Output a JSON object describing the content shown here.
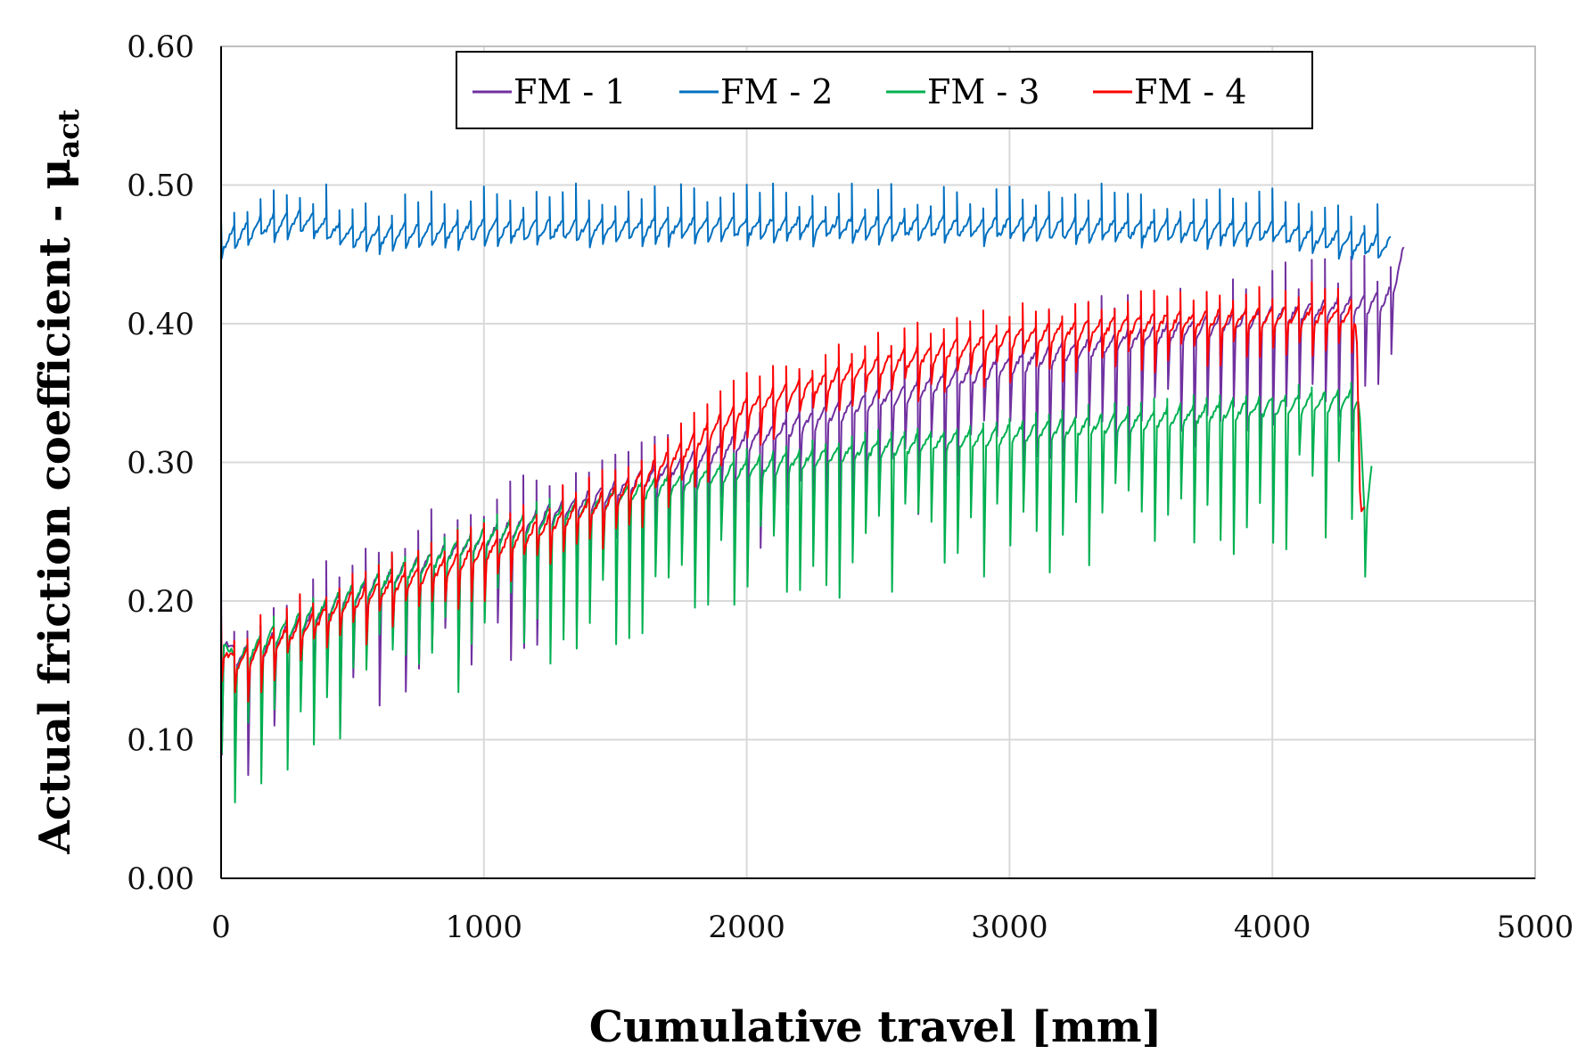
{
  "chart_data": {
    "type": "line",
    "title": "",
    "xlabel": "Cumulative travel [mm]",
    "ylabel": {
      "main": "Actual friction coefficient -  ",
      "symbol": "μ",
      "subscript": "act"
    },
    "xlim": [
      0,
      5000
    ],
    "ylim": [
      0.0,
      0.6
    ],
    "x_ticks": [
      0,
      1000,
      2000,
      3000,
      4000,
      5000
    ],
    "x_tick_labels": [
      "0",
      "1000",
      "2000",
      "3000",
      "4000",
      "5000"
    ],
    "y_ticks": [
      0.0,
      0.1,
      0.2,
      0.3,
      0.4,
      0.5,
      0.6
    ],
    "y_tick_labels": [
      "0.00",
      "0.10",
      "0.20",
      "0.30",
      "0.40",
      "0.50",
      "0.60"
    ],
    "grid": true,
    "legend_position": "top-center",
    "series": [
      {
        "name": "FM - 1",
        "color": "#7030a0",
        "cycle_mm": 50,
        "x_end": 4500,
        "spike_up": 0.03,
        "spike_down": 0.08,
        "baseline": [
          [
            0,
            0.18
          ],
          [
            50,
            0.16
          ],
          [
            150,
            0.165
          ],
          [
            500,
            0.205
          ],
          [
            1000,
            0.245
          ],
          [
            1500,
            0.28
          ],
          [
            2000,
            0.315
          ],
          [
            2500,
            0.345
          ],
          [
            3000,
            0.37
          ],
          [
            3500,
            0.39
          ],
          [
            4000,
            0.405
          ],
          [
            4400,
            0.415
          ],
          [
            4450,
            0.42
          ],
          [
            4500,
            0.45
          ]
        ]
      },
      {
        "name": "FM - 2",
        "color": "#0070c0",
        "cycle_mm": 50,
        "x_end": 4450,
        "spike_up": 0.025,
        "spike_down": 0.012,
        "baseline": [
          [
            0,
            0.46
          ],
          [
            150,
            0.47
          ],
          [
            300,
            0.475
          ],
          [
            500,
            0.463
          ],
          [
            1000,
            0.468
          ],
          [
            2000,
            0.47
          ],
          [
            3000,
            0.47
          ],
          [
            4000,
            0.467
          ],
          [
            4450,
            0.455
          ]
        ]
      },
      {
        "name": "FM - 3",
        "color": "#00b050",
        "cycle_mm": 50,
        "x_end": 4380,
        "spike_up": 0.012,
        "spike_down": 0.09,
        "baseline": [
          [
            0,
            0.18
          ],
          [
            50,
            0.155
          ],
          [
            150,
            0.17
          ],
          [
            500,
            0.205
          ],
          [
            1000,
            0.245
          ],
          [
            1500,
            0.275
          ],
          [
            2000,
            0.295
          ],
          [
            2500,
            0.31
          ],
          [
            3000,
            0.32
          ],
          [
            3500,
            0.33
          ],
          [
            4000,
            0.34
          ],
          [
            4330,
            0.345
          ],
          [
            4350,
            0.26
          ],
          [
            4380,
            0.3
          ]
        ]
      },
      {
        "name": "FM - 4",
        "color": "#ff0000",
        "cycle_mm": 50,
        "x_end": 4350,
        "spike_up": 0.02,
        "spike_down": 0.03,
        "baseline": [
          [
            0,
            0.17
          ],
          [
            50,
            0.155
          ],
          [
            150,
            0.165
          ],
          [
            500,
            0.2
          ],
          [
            1000,
            0.235
          ],
          [
            1500,
            0.275
          ],
          [
            2000,
            0.34
          ],
          [
            2500,
            0.37
          ],
          [
            3000,
            0.39
          ],
          [
            3500,
            0.4
          ],
          [
            4000,
            0.405
          ],
          [
            4320,
            0.405
          ],
          [
            4335,
            0.26
          ]
        ]
      }
    ]
  }
}
